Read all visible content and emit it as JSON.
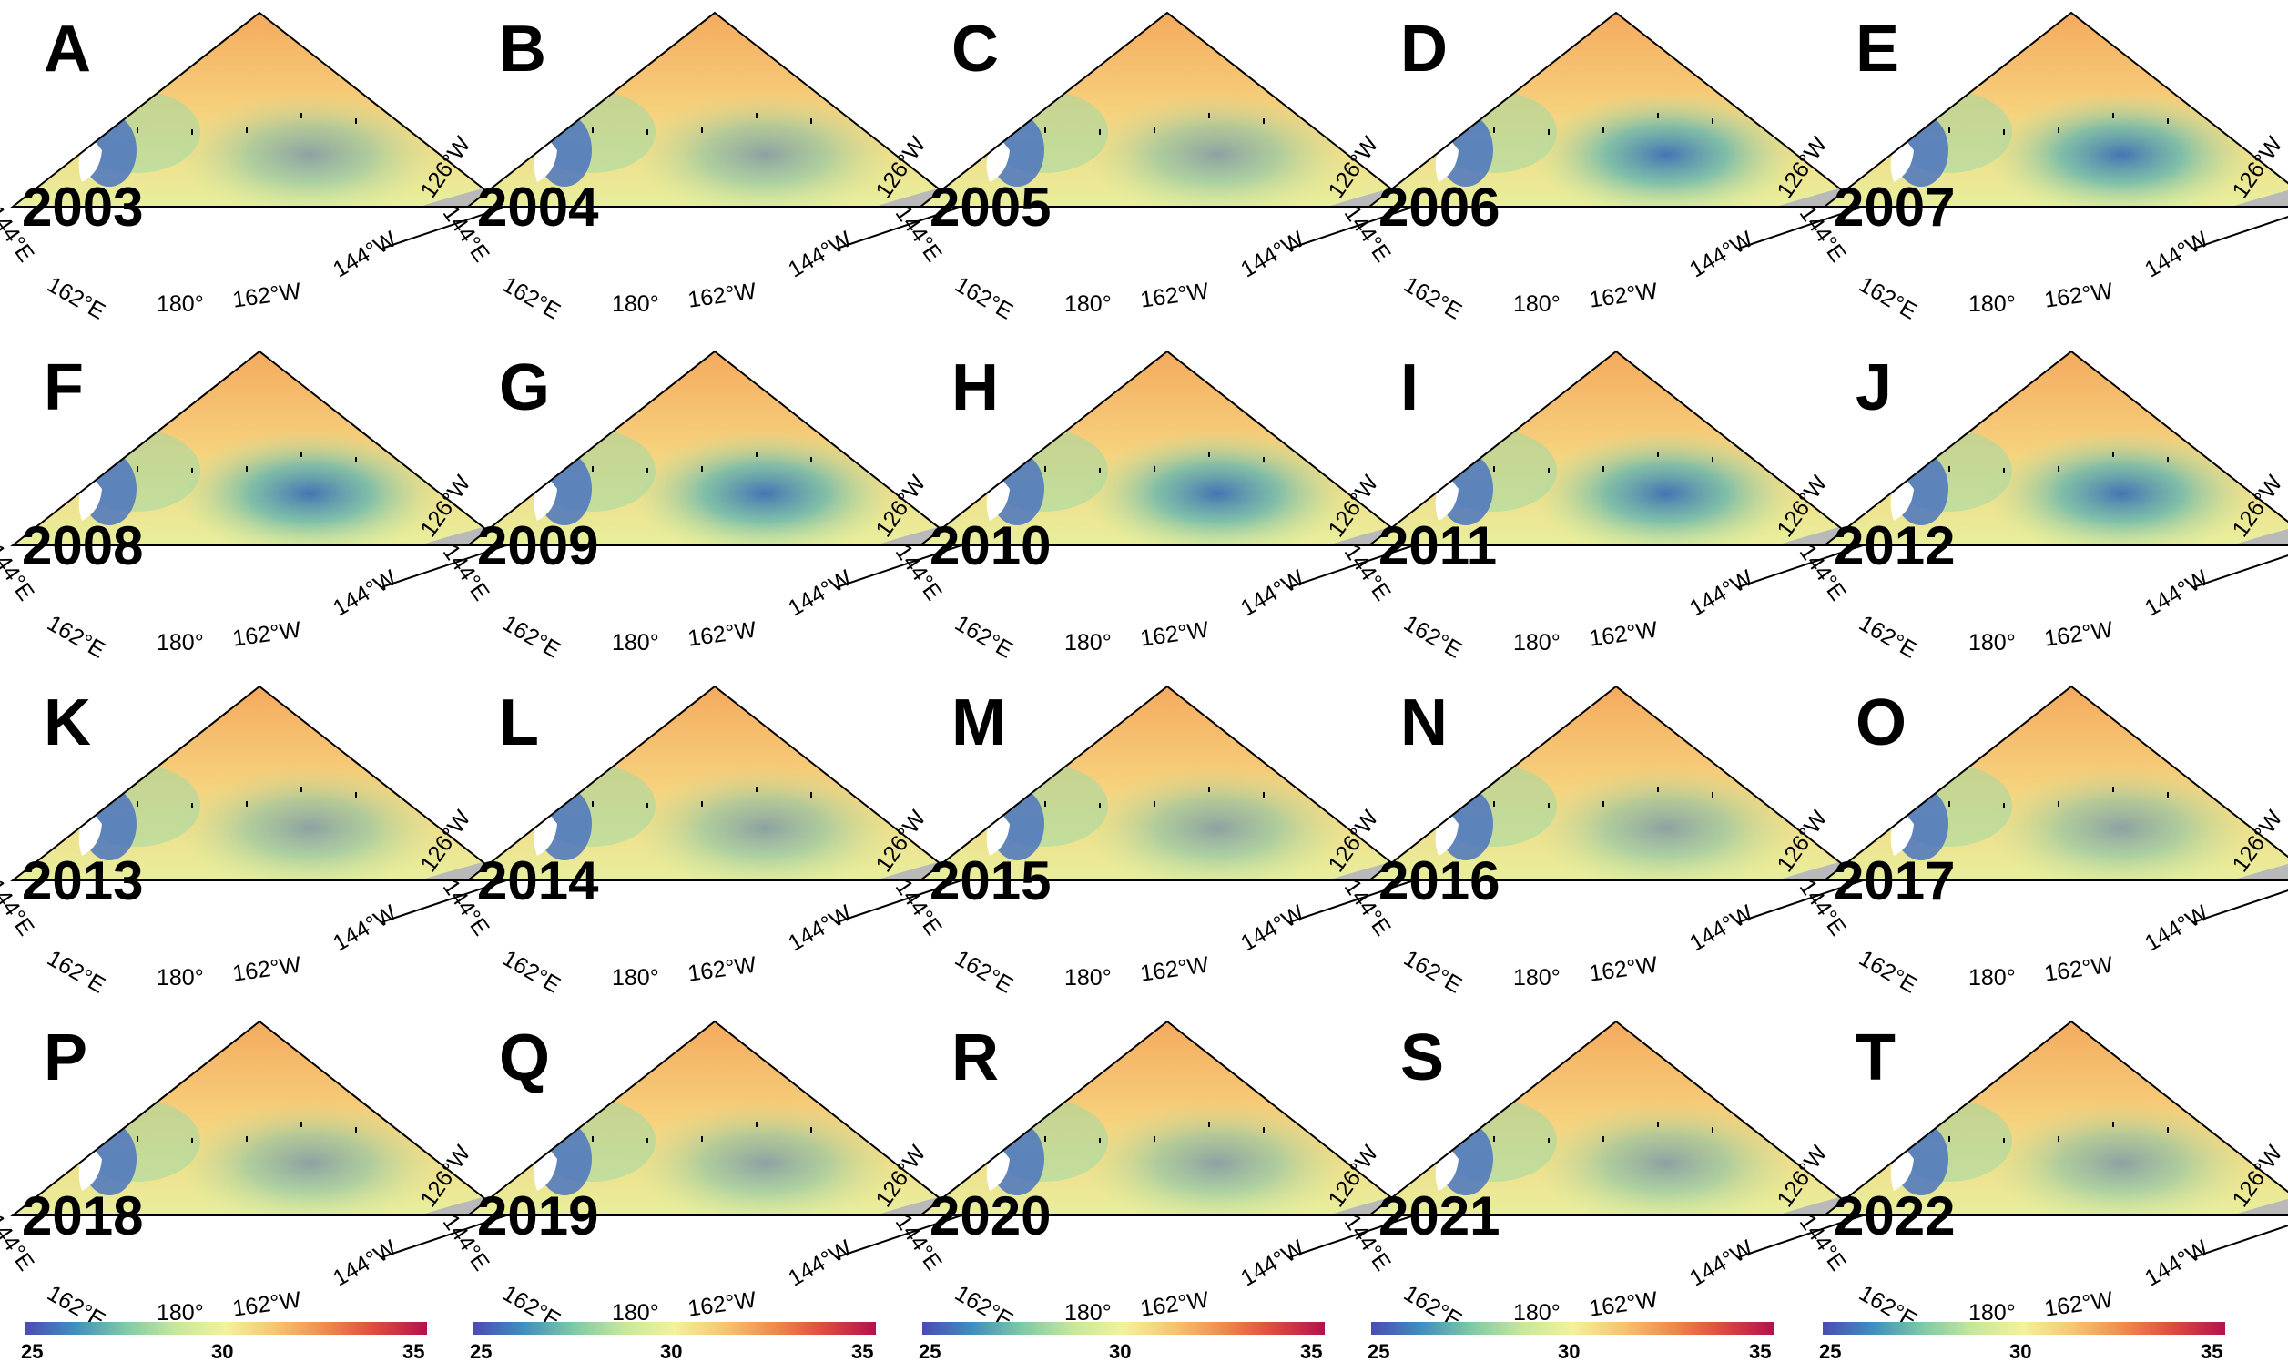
{
  "figure": {
    "lon_labels": [
      "144°E",
      "162°E",
      "180°",
      "162°W",
      "144°W",
      "126°W"
    ],
    "colorbar_ticks": [
      "25",
      "30",
      "35"
    ],
    "colorbar_range": [
      25,
      35
    ],
    "colors": {
      "land": "#b9b9b9",
      "fresh_min": "#4b4bb5",
      "mid": "#f4f29a",
      "salty_max": "#b3124c"
    }
  },
  "panels": [
    {
      "label": "A",
      "year": "2003"
    },
    {
      "label": "B",
      "year": "2004"
    },
    {
      "label": "C",
      "year": "2005"
    },
    {
      "label": "D",
      "year": "2006"
    },
    {
      "label": "E",
      "year": "2007"
    },
    {
      "label": "F",
      "year": "2008"
    },
    {
      "label": "G",
      "year": "2009"
    },
    {
      "label": "H",
      "year": "2010"
    },
    {
      "label": "I",
      "year": "2011"
    },
    {
      "label": "J",
      "year": "2012"
    },
    {
      "label": "K",
      "year": "2013"
    },
    {
      "label": "L",
      "year": "2014"
    },
    {
      "label": "M",
      "year": "2015"
    },
    {
      "label": "N",
      "year": "2016"
    },
    {
      "label": "O",
      "year": "2017"
    },
    {
      "label": "P",
      "year": "2018"
    },
    {
      "label": "Q",
      "year": "2019"
    },
    {
      "label": "R",
      "year": "2020"
    },
    {
      "label": "S",
      "year": "2021"
    },
    {
      "label": "T",
      "year": "2022"
    }
  ]
}
